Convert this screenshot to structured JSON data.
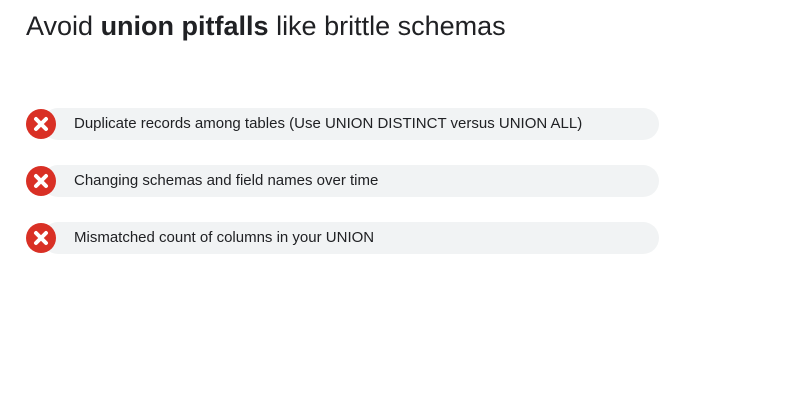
{
  "slide": {
    "title": {
      "part1": "Avoid ",
      "bold": "union pitfalls",
      "part2": " like brittle schemas"
    },
    "items": [
      {
        "icon": "close-icon",
        "text": "Duplicate records among tables (Use UNION DISTINCT versus UNION ALL)"
      },
      {
        "icon": "close-icon",
        "text": "Changing schemas and field names over time"
      },
      {
        "icon": "close-icon",
        "text": "Mismatched count of columns in your UNION"
      }
    ]
  },
  "colors": {
    "badge": "#d93025",
    "pill": "#f1f3f4",
    "text": "#202124"
  }
}
